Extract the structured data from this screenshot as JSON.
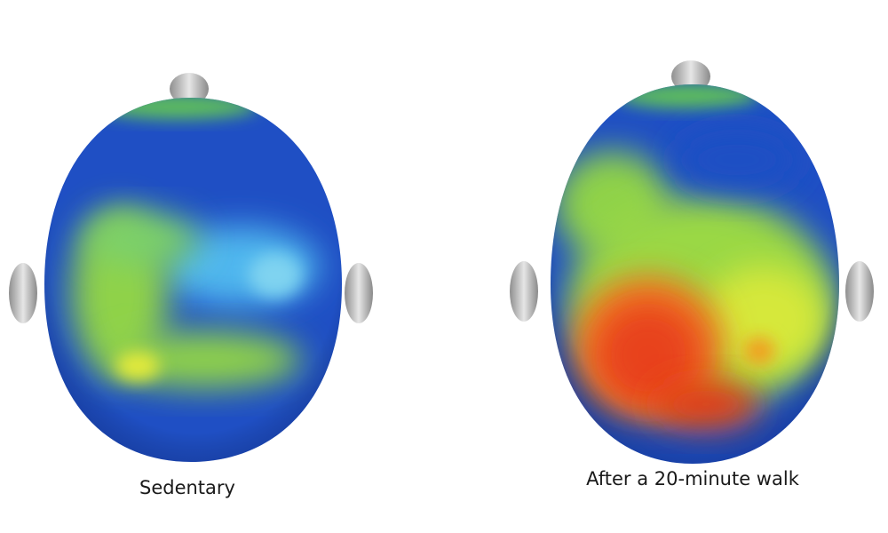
{
  "panels": [
    {
      "label": "Sedentary"
    },
    {
      "label": "After a 20-minute walk"
    }
  ]
}
